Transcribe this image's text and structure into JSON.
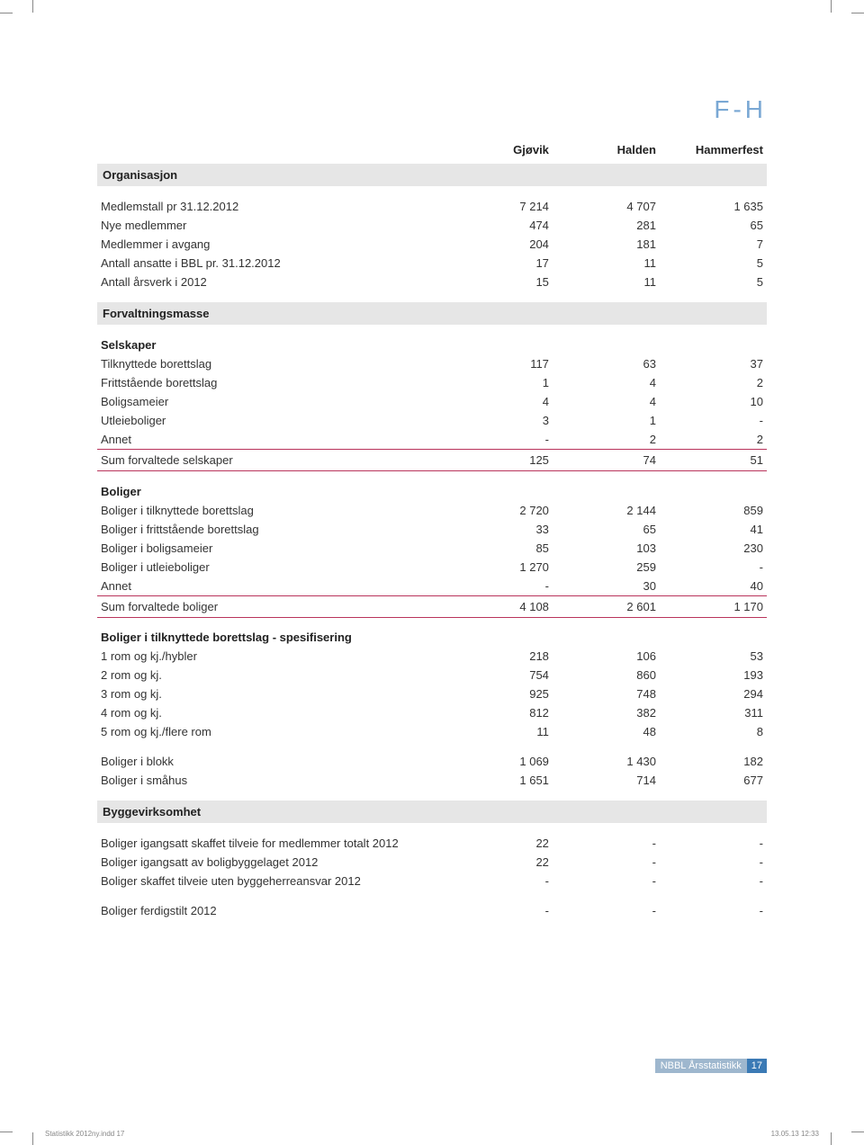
{
  "title": "F-H",
  "columns": [
    "Gjøvik",
    "Halden",
    "Hammerfest"
  ],
  "sections": [
    {
      "head": "Organisasjon",
      "rows": [
        {
          "label": "Medlemstall pr 31.12.2012",
          "v": [
            "7 214",
            "4 707",
            "1 635"
          ]
        },
        {
          "label": "Nye medlemmer",
          "v": [
            "474",
            "281",
            "65"
          ]
        },
        {
          "label": "Medlemmer i avgang",
          "v": [
            "204",
            "181",
            "7"
          ]
        },
        {
          "label": "Antall ansatte i BBL pr. 31.12.2012",
          "v": [
            "17",
            "11",
            "5"
          ]
        },
        {
          "label": "Antall årsverk i 2012",
          "v": [
            "15",
            "11",
            "5"
          ]
        }
      ]
    },
    {
      "head": "Forvaltningsmasse",
      "groups": [
        {
          "sub": "Selskaper",
          "rows": [
            {
              "label": "Tilknyttede borettslag",
              "v": [
                "117",
                "63",
                "37"
              ]
            },
            {
              "label": "Frittstående borettslag",
              "v": [
                "1",
                "4",
                "2"
              ]
            },
            {
              "label": "Boligsameier",
              "v": [
                "4",
                "4",
                "10"
              ]
            },
            {
              "label": "Utleieboliger",
              "v": [
                "3",
                "1",
                "-"
              ]
            },
            {
              "label": "Annet",
              "v": [
                "-",
                "2",
                "2"
              ]
            }
          ],
          "sum": {
            "label": "Sum forvaltede selskaper",
            "v": [
              "125",
              "74",
              "51"
            ]
          }
        },
        {
          "sub": "Boliger",
          "rows": [
            {
              "label": "Boliger i tilknyttede borettslag",
              "v": [
                "2 720",
                "2 144",
                "859"
              ]
            },
            {
              "label": "Boliger i frittstående borettslag",
              "v": [
                "33",
                "65",
                "41"
              ]
            },
            {
              "label": "Boliger i boligsameier",
              "v": [
                "85",
                "103",
                "230"
              ]
            },
            {
              "label": "Boliger i utleieboliger",
              "v": [
                "1 270",
                "259",
                "-"
              ]
            },
            {
              "label": "Annet",
              "v": [
                "-",
                "30",
                "40"
              ]
            }
          ],
          "sum": {
            "label": "Sum forvaltede boliger",
            "v": [
              "4 108",
              "2 601",
              "1 170"
            ]
          }
        },
        {
          "sub": "Boliger i tilknyttede borettslag - spesifisering",
          "rows": [
            {
              "label": "1 rom og kj./hybler",
              "v": [
                "218",
                "106",
                "53"
              ]
            },
            {
              "label": "2 rom og kj.",
              "v": [
                "754",
                "860",
                "193"
              ]
            },
            {
              "label": "3 rom og kj.",
              "v": [
                "925",
                "748",
                "294"
              ]
            },
            {
              "label": "4 rom og kj.",
              "v": [
                "812",
                "382",
                "311"
              ]
            },
            {
              "label": "5 rom og kj./flere rom",
              "v": [
                "11",
                "48",
                "8"
              ]
            }
          ],
          "extra": [
            {
              "label": "Boliger i blokk",
              "v": [
                "1 069",
                "1 430",
                "182"
              ]
            },
            {
              "label": "Boliger i småhus",
              "v": [
                "1 651",
                "714",
                "677"
              ]
            }
          ]
        }
      ]
    },
    {
      "head": "Byggevirksomhet",
      "rows": [
        {
          "label": "Boliger igangsatt skaffet tilveie for medlemmer totalt 2012",
          "v": [
            "22",
            "-",
            "-"
          ]
        },
        {
          "label": "Boliger igangsatt av boligbyggelaget 2012",
          "v": [
            "22",
            "-",
            "-"
          ]
        },
        {
          "label": "Boliger skaffet tilveie uten byggeherreansvar 2012",
          "v": [
            "-",
            "-",
            "-"
          ]
        }
      ],
      "extra": [
        {
          "label": "Boliger ferdigstilt 2012",
          "v": [
            "-",
            "-",
            "-"
          ]
        }
      ]
    }
  ],
  "footer": {
    "label": "NBBL Årsstatistikk",
    "page": "17"
  },
  "indd": {
    "file": "Statistikk 2012ny.indd   17",
    "ts": "13.05.13   12:33"
  }
}
